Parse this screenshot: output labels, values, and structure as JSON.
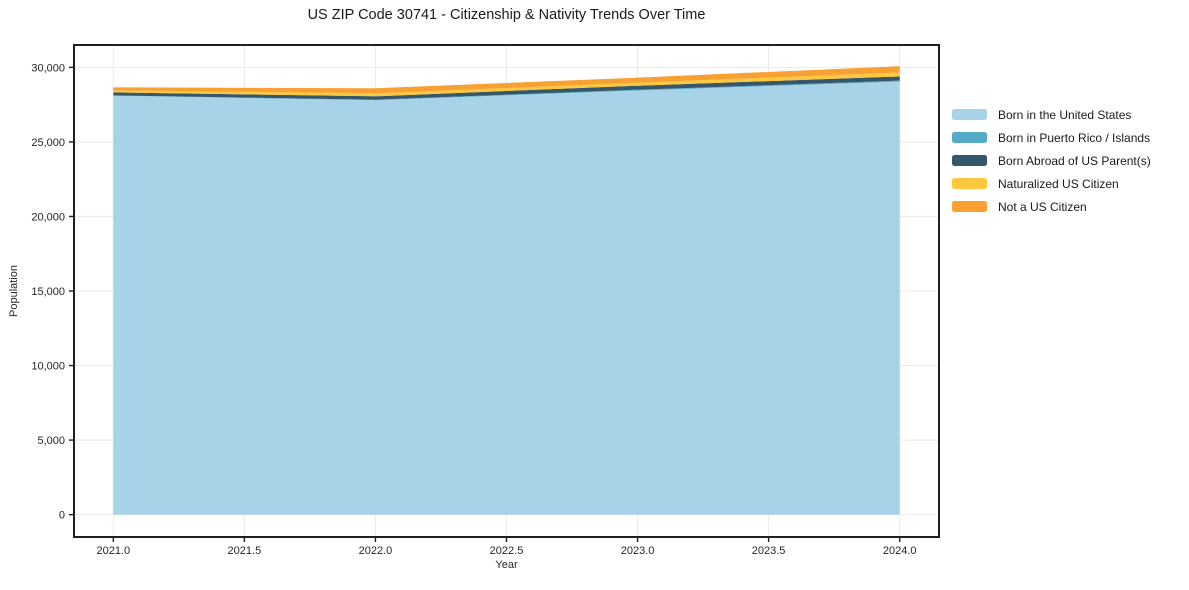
{
  "chart_data": {
    "type": "area",
    "stacked": true,
    "title": "US ZIP Code 30741 - Citizenship & Nativity Trends Over Time",
    "xlabel": "Year",
    "ylabel": "Population",
    "x": [
      2021,
      2022,
      2023,
      2024
    ],
    "series": [
      {
        "name": "Born in the United States",
        "color": "#A0CFE6",
        "values": [
          28100,
          27800,
          28450,
          29050
        ]
      },
      {
        "name": "Born in Puerto Rico / Islands",
        "color": "#43A5C2",
        "values": [
          20,
          30,
          50,
          60
        ]
      },
      {
        "name": "Born Abroad of US Parent(s)",
        "color": "#25485C",
        "values": [
          200,
          230,
          270,
          280
        ]
      },
      {
        "name": "Naturalized US Citizen",
        "color": "#FCC32F",
        "values": [
          140,
          200,
          200,
          270
        ]
      },
      {
        "name": "Not a US Citizen",
        "color": "#F79821",
        "values": [
          200,
          340,
          340,
          420
        ]
      }
    ],
    "xlim": [
      2020.85,
      2024.15
    ],
    "ylim": [
      -1500,
      31500
    ],
    "xticks": [
      2021.0,
      2021.5,
      2022.0,
      2022.5,
      2023.0,
      2023.5,
      2024.0
    ],
    "xtick_labels": [
      "2021.0",
      "2021.5",
      "2022.0",
      "2022.5",
      "2023.0",
      "2023.5",
      "2024.0"
    ],
    "yticks": [
      0,
      5000,
      10000,
      15000,
      20000,
      25000,
      30000
    ],
    "ytick_labels": [
      "0",
      "5,000",
      "10,000",
      "15,000",
      "20,000",
      "25,000",
      "30,000"
    ],
    "grid": true,
    "legend_position": "right",
    "colors": {
      "grid": "#EBEBEB",
      "frame": "#1F1F1F",
      "tick_text": "#262626",
      "title_text": "#1A1A1A",
      "background": "#FFFFFF"
    }
  }
}
